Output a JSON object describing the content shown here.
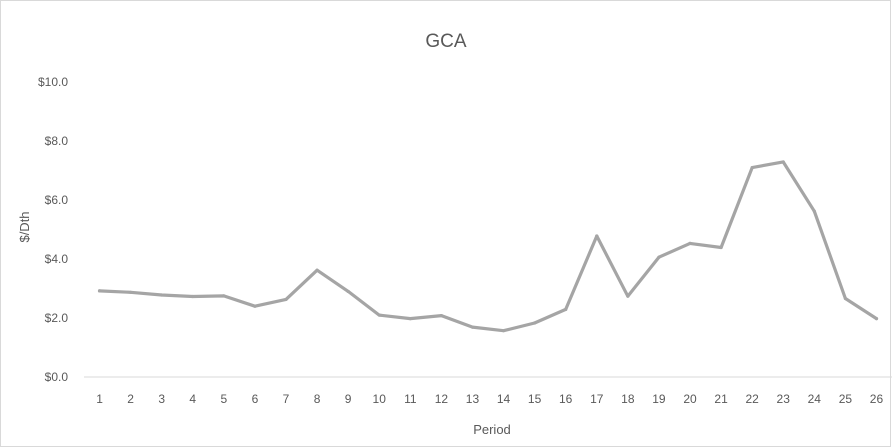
{
  "chart_data": {
    "type": "line",
    "title": "GCA",
    "xlabel": "Period",
    "ylabel": "$/Dth",
    "x": [
      "1",
      "2",
      "3",
      "4",
      "5",
      "6",
      "7",
      "8",
      "9",
      "10",
      "11",
      "12",
      "13",
      "14",
      "15",
      "16",
      "17",
      "18",
      "19",
      "20",
      "21",
      "22",
      "23",
      "24",
      "25",
      "26"
    ],
    "y_ticks": [
      "$0.0",
      "$2.0",
      "$4.0",
      "$6.0",
      "$8.0",
      "$10.0"
    ],
    "ylim": [
      0,
      10
    ],
    "grid": false,
    "series": [
      {
        "values": [
          2.92,
          2.87,
          2.78,
          2.73,
          2.75,
          2.4,
          2.63,
          3.62,
          2.9,
          2.1,
          1.98,
          2.08,
          1.69,
          1.57,
          1.83,
          2.29,
          4.78,
          2.74,
          4.06,
          4.53,
          4.39,
          7.1,
          7.29,
          5.62,
          2.66,
          1.98
        ],
        "color": "#a5a5a5"
      }
    ]
  }
}
